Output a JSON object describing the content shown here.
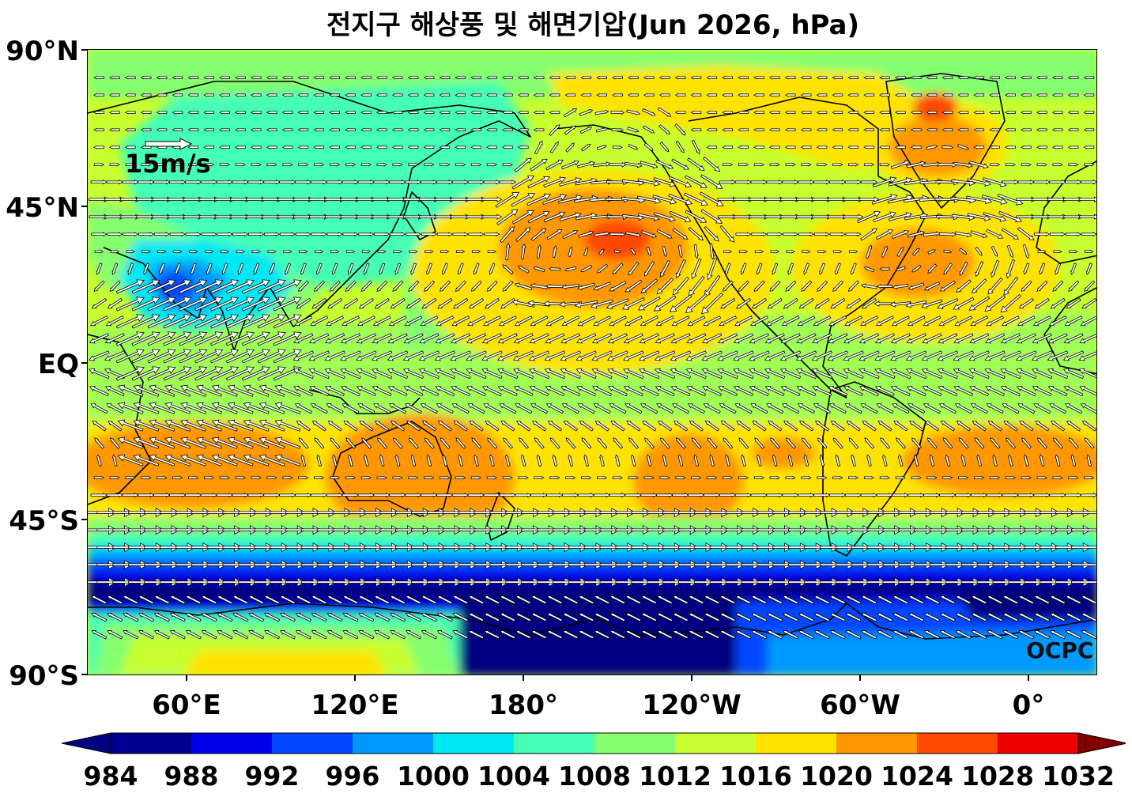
{
  "title": "전지구 해상풍 및 해면기압(Jun 2026, hPa)",
  "axes": {
    "y_labels": [
      "90°N",
      "45°N",
      "EQ",
      "45°S",
      "90°S"
    ],
    "x_labels": [
      "60°E",
      "120°E",
      "180°",
      "120°W",
      "60°W",
      "0°"
    ]
  },
  "wind_reference": {
    "label": "15m/s",
    "speed_ms": 15
  },
  "brand": "OCPC",
  "colorbar": {
    "levels": [
      "984",
      "988",
      "992",
      "996",
      "1000",
      "1004",
      "1008",
      "1012",
      "1016",
      "1020",
      "1024",
      "1028",
      "1032"
    ],
    "colors": [
      "#000080",
      "#00008f",
      "#0000e8",
      "#0046ff",
      "#0099ff",
      "#00e8f2",
      "#45ffb5",
      "#86ff70",
      "#c8ff2e",
      "#ffe300",
      "#ff9800",
      "#ff4a00",
      "#ee0000",
      "#800000"
    ]
  },
  "map_data": {
    "projection": "equirectangular",
    "lon_range": [
      25,
      385
    ],
    "lat_range": [
      -90,
      90
    ],
    "field": "sea level pressure (hPa) with surface wind vectors",
    "pressure_features": [
      {
        "lon": 213,
        "lat": 37,
        "hPa": 1026
      },
      {
        "lon": 330,
        "lat": 33,
        "hPa": 1022
      },
      {
        "lon": 341,
        "lat": 75,
        "hPa": 1026
      },
      {
        "lon": 135,
        "lat": -27,
        "hPa": 1022
      },
      {
        "lon": 255,
        "lat": -32,
        "hPa": 1022
      },
      {
        "lon": 352,
        "lat": -27,
        "hPa": 1022
      },
      {
        "lon": 60,
        "lat": -30,
        "hPa": 1022
      },
      {
        "lon": 60,
        "lat": 25,
        "hPa": 996
      },
      {
        "lon": 180,
        "lat": -72,
        "hPa": 984
      }
    ]
  }
}
